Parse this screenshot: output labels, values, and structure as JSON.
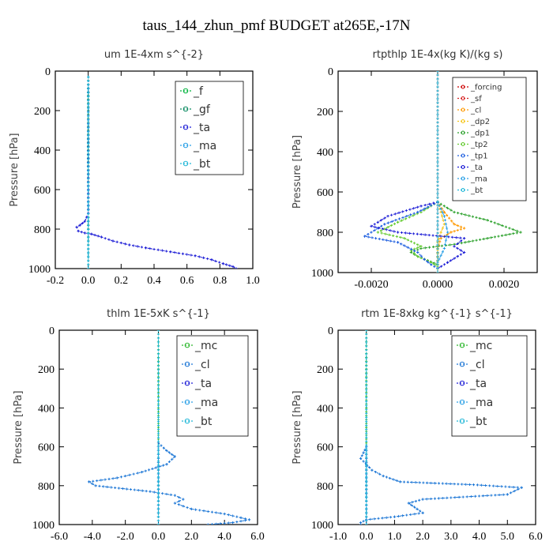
{
  "figure_title": "taus_144_zhun_pmf  BUDGET at265E,-17N",
  "chart_data": [
    {
      "type": "line",
      "title": "um  1E-4xm s^{-2}",
      "ylabel": "Pressure [hPa]",
      "xlim": [
        -0.2,
        1.0
      ],
      "ylim": [
        1000,
        0
      ],
      "xticks": [
        "-0.2",
        "0.0",
        "0.2",
        "0.4",
        "0.6",
        "0.8",
        "1.0"
      ],
      "yticks": [
        "0",
        "200",
        "400",
        "600",
        "800",
        "1000"
      ],
      "legend": [
        "_f",
        "_gf",
        "_ta",
        "_ma",
        "_bt"
      ],
      "series": [
        {
          "name": "_f",
          "color": "#00b33c",
          "points": [
            [
              0,
              30
            ],
            [
              0,
              200
            ],
            [
              0,
              400
            ],
            [
              0,
              600
            ],
            [
              0,
              800
            ],
            [
              0,
              1000
            ]
          ]
        },
        {
          "name": "_gf",
          "color": "#0a8a60",
          "points": [
            [
              0,
              30
            ],
            [
              0,
              200
            ],
            [
              0,
              400
            ],
            [
              0,
              600
            ],
            [
              0,
              800
            ],
            [
              0,
              1000
            ]
          ]
        },
        {
          "name": "_ta",
          "color": "#1f1fd6",
          "points": [
            [
              0,
              30
            ],
            [
              0,
              600
            ],
            [
              0,
              720
            ],
            [
              -0.02,
              760
            ],
            [
              -0.05,
              780
            ],
            [
              -0.07,
              790
            ],
            [
              -0.06,
              810
            ],
            [
              -0.02,
              820
            ],
            [
              0.02,
              825
            ],
            [
              0.08,
              840
            ],
            [
              0.15,
              860
            ],
            [
              0.25,
              880
            ],
            [
              0.35,
              895
            ],
            [
              0.5,
              915
            ],
            [
              0.65,
              935
            ],
            [
              0.75,
              955
            ],
            [
              0.82,
              975
            ],
            [
              0.88,
              990
            ],
            [
              0.9,
              1000
            ]
          ]
        },
        {
          "name": "_ma",
          "color": "#2aa0e6",
          "points": [
            [
              0,
              30
            ],
            [
              0,
              1000
            ]
          ]
        },
        {
          "name": "_bt",
          "color": "#22b8d8",
          "points": [
            [
              0,
              30
            ],
            [
              0,
              1000
            ]
          ]
        }
      ]
    },
    {
      "type": "line",
      "title": "rtpthlp  1E-4x(kg K)/(kg s)",
      "ylabel": "Pressure [hPa]",
      "xlim": [
        -0.003,
        0.003
      ],
      "ylim": [
        1000,
        0
      ],
      "xticks": [
        "-0.0020",
        "0.0000",
        "0.0020"
      ],
      "yticks": [
        "0",
        "200",
        "400",
        "600",
        "800",
        "1000"
      ],
      "legend": [
        "_forcing",
        "_sf",
        "_cl",
        "_dp2",
        "_dp1",
        "_tp2",
        "_tp1",
        "_ta",
        "_ma",
        "_bt"
      ],
      "series": [
        {
          "name": "_forcing",
          "color": "#cc0000",
          "points": [
            [
              0,
              0
            ],
            [
              0,
              1000
            ]
          ]
        },
        {
          "name": "_sf",
          "color": "#d62020",
          "points": [
            [
              0,
              0
            ],
            [
              0,
              1000
            ]
          ]
        },
        {
          "name": "_cl",
          "color": "#ff9900",
          "points": [
            [
              0,
              650
            ],
            [
              0.0002,
              700
            ],
            [
              0.0005,
              760
            ],
            [
              0.0008,
              780
            ],
            [
              0.0004,
              800
            ],
            [
              0.0001,
              830
            ],
            [
              0,
              880
            ],
            [
              0,
              1000
            ]
          ]
        },
        {
          "name": "_dp2",
          "color": "#f5c518",
          "points": [
            [
              0,
              650
            ],
            [
              0.0001,
              700
            ],
            [
              0.0002,
              760
            ],
            [
              0.0001,
              800
            ],
            [
              0,
              850
            ],
            [
              0,
              1000
            ]
          ]
        },
        {
          "name": "_dp1",
          "color": "#2aa02a",
          "points": [
            [
              0,
              650
            ],
            [
              0.0005,
              700
            ],
            [
              0.0015,
              740
            ],
            [
              0.0025,
              800
            ],
            [
              0.0015,
              830
            ],
            [
              0.0005,
              860
            ],
            [
              -0.0005,
              880
            ],
            [
              -0.0008,
              900
            ],
            [
              -0.0006,
              920
            ],
            [
              -0.0003,
              940
            ],
            [
              0,
              960
            ]
          ]
        },
        {
          "name": "_tp2",
          "color": "#66cc33",
          "points": [
            [
              0,
              650
            ],
            [
              -0.0005,
              700
            ],
            [
              -0.0012,
              750
            ],
            [
              -0.0018,
              800
            ],
            [
              -0.001,
              830
            ],
            [
              -0.0005,
              870
            ],
            [
              -0.0008,
              890
            ],
            [
              -0.0006,
              920
            ],
            [
              -0.0002,
              950
            ],
            [
              0,
              970
            ]
          ]
        },
        {
          "name": "_tp1",
          "color": "#2060e0",
          "points": [
            [
              0,
              650
            ],
            [
              -0.0006,
              700
            ],
            [
              -0.0016,
              760
            ],
            [
              -0.0022,
              820
            ],
            [
              -0.0012,
              850
            ],
            [
              -0.0006,
              900
            ],
            [
              -0.0004,
              935
            ],
            [
              -0.0002,
              960
            ],
            [
              0,
              980
            ]
          ]
        },
        {
          "name": "_ta",
          "color": "#1f1fd6",
          "points": [
            [
              0,
              650
            ],
            [
              -0.0005,
              670
            ],
            [
              -0.0015,
              720
            ],
            [
              -0.002,
              770
            ],
            [
              -0.0012,
              800
            ],
            [
              0.0008,
              830
            ],
            [
              0.0005,
              870
            ],
            [
              0.0008,
              900
            ],
            [
              0.0006,
              920
            ],
            [
              0.0003,
              950
            ],
            [
              0,
              980
            ]
          ]
        },
        {
          "name": "_ma",
          "color": "#2aa0e6",
          "points": [
            [
              0,
              650
            ],
            [
              0.0002,
              720
            ],
            [
              0.0003,
              800
            ],
            [
              0.0002,
              880
            ],
            [
              0,
              950
            ]
          ]
        },
        {
          "name": "_bt",
          "color": "#22b8d8",
          "points": [
            [
              0,
              0
            ],
            [
              0,
              1000
            ]
          ]
        }
      ]
    },
    {
      "type": "line",
      "title": "thlm  1E-5xK s^{-1}",
      "ylabel": "Pressure [hPa]",
      "xlim": [
        -6.0,
        6.0
      ],
      "ylim": [
        1000,
        0
      ],
      "xticks": [
        "-6.0",
        "-4.0",
        "-2.0",
        "0.0",
        "2.0",
        "4.0",
        "6.0"
      ],
      "yticks": [
        "0",
        "200",
        "400",
        "600",
        "800",
        "1000"
      ],
      "legend": [
        "_mc",
        "_cl",
        "_ta",
        "_ma",
        "_bt"
      ],
      "series": [
        {
          "name": "_mc",
          "color": "#2eb82e",
          "points": [
            [
              0,
              0
            ],
            [
              0,
              200
            ],
            [
              0,
              400
            ],
            [
              0,
              600
            ],
            [
              0,
              800
            ],
            [
              0,
              1000
            ]
          ]
        },
        {
          "name": "_cl",
          "color": "#1f78d6",
          "points": [
            [
              0,
              580
            ],
            [
              0.5,
              620
            ],
            [
              1.0,
              650
            ],
            [
              0.5,
              690
            ],
            [
              -1.0,
              730
            ],
            [
              -2.5,
              760
            ],
            [
              -4.2,
              780
            ],
            [
              -3.8,
              800
            ],
            [
              -0.5,
              830
            ],
            [
              1.0,
              850
            ],
            [
              1.5,
              870
            ],
            [
              1.0,
              890
            ],
            [
              2.0,
              920
            ],
            [
              4.0,
              945
            ],
            [
              5.0,
              965
            ],
            [
              5.5,
              975
            ],
            [
              4.5,
              990
            ],
            [
              3.0,
              1000
            ]
          ]
        },
        {
          "name": "_ta",
          "color": "#1f1fd6",
          "points": [
            [
              0,
              600
            ],
            [
              0,
              1000
            ]
          ]
        },
        {
          "name": "_ma",
          "color": "#2aa0e6",
          "points": [
            [
              0,
              600
            ],
            [
              0,
              1000
            ]
          ]
        },
        {
          "name": "_bt",
          "color": "#22b8d8",
          "points": [
            [
              0,
              0
            ],
            [
              0,
              1000
            ]
          ]
        }
      ]
    },
    {
      "type": "line",
      "title": "rtm  1E-8xkg kg^{-1} s^{-1}",
      "ylabel": "Pressure [hPa]",
      "xlim": [
        -1.0,
        6.0
      ],
      "ylim": [
        1000,
        0
      ],
      "xticks": [
        "-1.0",
        "0.0",
        "1.0",
        "2.0",
        "3.0",
        "4.0",
        "5.0",
        "6.0"
      ],
      "yticks": [
        "0",
        "200",
        "400",
        "600",
        "800",
        "1000"
      ],
      "legend": [
        "_mc",
        "_cl",
        "_ta",
        "_ma",
        "_bt"
      ],
      "series": [
        {
          "name": "_mc",
          "color": "#2eb82e",
          "points": [
            [
              0,
              0
            ],
            [
              0,
              200
            ],
            [
              0,
              400
            ],
            [
              0,
              600
            ],
            [
              0,
              800
            ],
            [
              0,
              1000
            ]
          ]
        },
        {
          "name": "_cl",
          "color": "#1f78d6",
          "points": [
            [
              0,
              600
            ],
            [
              -0.1,
              630
            ],
            [
              -0.2,
              660
            ],
            [
              0,
              690
            ],
            [
              0.2,
              720
            ],
            [
              0.6,
              750
            ],
            [
              1.2,
              780
            ],
            [
              3.8,
              795
            ],
            [
              5.5,
              810
            ],
            [
              5.0,
              845
            ],
            [
              2.0,
              870
            ],
            [
              1.5,
              890
            ],
            [
              1.8,
              920
            ],
            [
              2.0,
              940
            ],
            [
              1.0,
              960
            ],
            [
              0,
              975
            ],
            [
              -0.2,
              990
            ],
            [
              -0.2,
              1000
            ]
          ]
        },
        {
          "name": "_ta",
          "color": "#1f1fd6",
          "points": [
            [
              0,
              600
            ],
            [
              0,
              1000
            ]
          ]
        },
        {
          "name": "_ma",
          "color": "#2aa0e6",
          "points": [
            [
              0,
              600
            ],
            [
              0,
              1000
            ]
          ]
        },
        {
          "name": "_bt",
          "color": "#22b8d8",
          "points": [
            [
              0,
              0
            ],
            [
              0,
              1000
            ]
          ]
        }
      ]
    }
  ]
}
